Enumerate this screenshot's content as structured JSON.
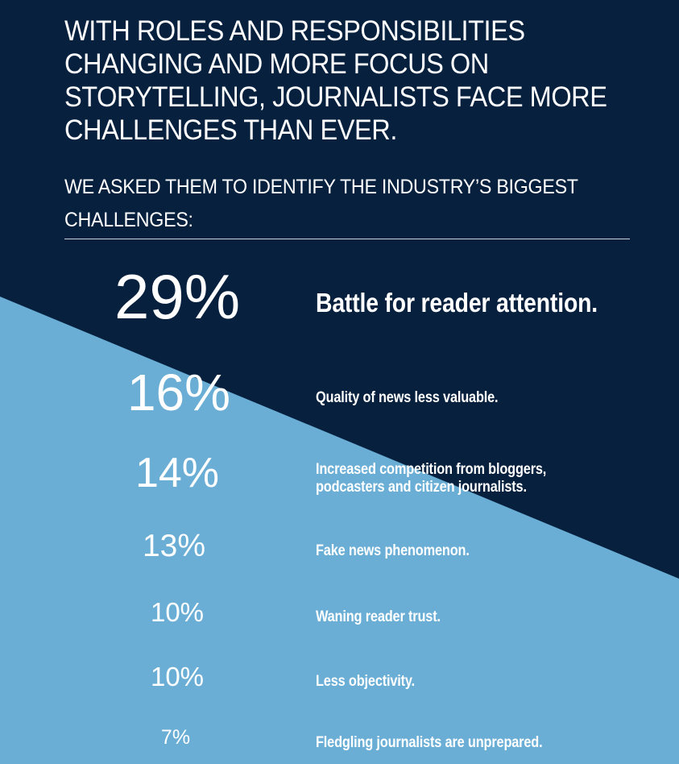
{
  "headline": "WITH ROLES AND RESPONSIBILITIES CHANGING AND MORE FOCUS ON STORYTELLING, JOURNALISTS FACE MORE CHALLENGES THAN EVER.",
  "subheadline": "WE ASKED THEM TO IDENTIFY THE INDUSTRY’S BIGGEST CHALLENGES:",
  "colors": {
    "dark_navy": "#06203e",
    "light_blue": "#6aaed6",
    "text": "#ffffff",
    "rule": "#c9d3de"
  },
  "chart_data": {
    "type": "table",
    "title": "WE ASKED THEM TO IDENTIFY THE INDUSTRY’S BIGGEST CHALLENGES:",
    "rows": [
      {
        "percent_label": "29%",
        "value": 29,
        "label": "Battle for reader attention."
      },
      {
        "percent_label": "16%",
        "value": 16,
        "label": "Quality of news less valuable."
      },
      {
        "percent_label": "14%",
        "value": 14,
        "label": "Increased competition from bloggers,\npodcasters and citizen journalists."
      },
      {
        "percent_label": "13%",
        "value": 13,
        "label": "Fake news phenomenon."
      },
      {
        "percent_label": "10%",
        "value": 10,
        "label": "Waning reader trust."
      },
      {
        "percent_label": "10%",
        "value": 10,
        "label": "Less objectivity."
      },
      {
        "percent_label": "7%",
        "value": 7,
        "label": "Fledgling journalists are unprepared."
      }
    ]
  }
}
